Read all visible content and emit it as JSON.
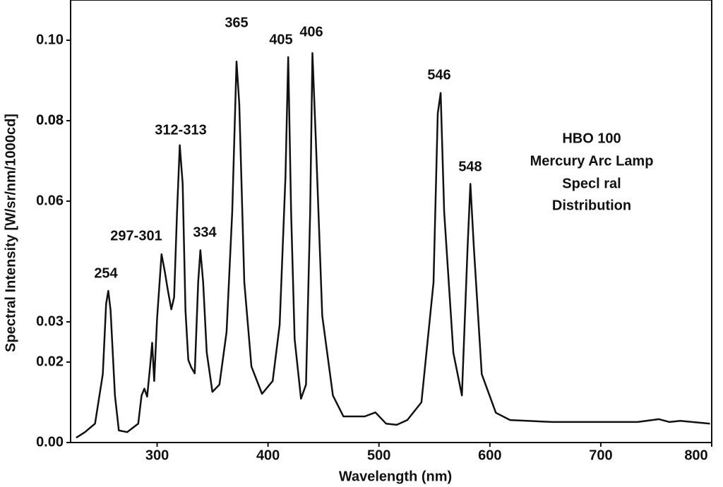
{
  "chart_data": {
    "type": "line",
    "x_label": "Wavelength (nm)",
    "y_label": "Spectral Intensity [W/sr/nm/1000cd]",
    "annotations": [
      "254",
      "297-301",
      "312-313",
      "334",
      "365",
      "405",
      "406",
      "546",
      "548"
    ],
    "box_text": [
      "HBO 100",
      "Mercury Arc Lamp",
      "Specl ral",
      "Distribution"
    ],
    "xlim": [
      222,
      800
    ],
    "ylim": [
      0,
      0.11
    ],
    "xticks": [
      300,
      400,
      500,
      600,
      700,
      800
    ],
    "yticks": [
      {
        "value": 0,
        "label": "0.00"
      },
      0.02,
      0.03,
      0.06,
      0.08,
      0.08,
      {
        "value": 0.1,
        "label": "0.10"
      }
    ],
    "series": [
      {
        "color": "#111111",
        "x": [
          227,
          235,
          244,
          251,
          254,
          256,
          258,
          262,
          265.5,
          273,
          283,
          286,
          288.5,
          291,
          293.6,
          295.5,
          297.4,
          300,
          304,
          307,
          309.6,
          312.8,
          315.3,
          317.9,
          320.4,
          323,
          325.6,
          328.1,
          330.7,
          333.9,
          337,
          339,
          341.5,
          344.7,
          349.8,
          356.2,
          362.6,
          367.7,
          371.6,
          374.1,
          378.6,
          385,
          394.6,
          404.2,
          410.5,
          415.7,
          418.2,
          420.8,
          424,
          429.7,
          434.2,
          438,
          440,
          443.1,
          448.9,
          458.5,
          468,
          477.6,
          487.2,
          496.8,
          506.4,
          516,
          525.6,
          538.3,
          549.2,
          553,
          555.6,
          558.8,
          567.1,
          574.8,
          579.9,
          582.4,
          585.6,
          592.7,
          605.4,
          618.2,
          656.5,
          733.2,
          752.4,
          762,
          771.6,
          798.4
        ],
        "values": [
          0.0012,
          0.0026,
          0.0047,
          0.017,
          0.0345,
          0.0377,
          0.0329,
          0.0117,
          0.003,
          0.0026,
          0.0047,
          0.0117,
          0.0134,
          0.0114,
          0.0187,
          0.0248,
          0.0153,
          0.0309,
          0.0468,
          0.0424,
          0.038,
          0.0331,
          0.0361,
          0.0571,
          0.0739,
          0.0644,
          0.0328,
          0.0205,
          0.0187,
          0.0172,
          0.0399,
          0.0478,
          0.0399,
          0.0224,
          0.0126,
          0.0144,
          0.0275,
          0.0573,
          0.0947,
          0.0841,
          0.0399,
          0.0189,
          0.0121,
          0.0153,
          0.0293,
          0.066,
          0.0958,
          0.0573,
          0.0257,
          0.0109,
          0.0144,
          0.0573,
          0.0968,
          0.0753,
          0.0315,
          0.0117,
          0.0065,
          0.0065,
          0.0065,
          0.0075,
          0.0047,
          0.0044,
          0.0056,
          0.01,
          0.0398,
          0.0818,
          0.0869,
          0.0573,
          0.0223,
          0.0117,
          0.0483,
          0.0643,
          0.0483,
          0.017,
          0.0074,
          0.0056,
          0.0051,
          0.0051,
          0.0058,
          0.0051,
          0.0054,
          0.0047
        ]
      }
    ]
  }
}
